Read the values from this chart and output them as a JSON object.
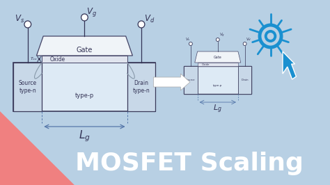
{
  "bg_color": "#b8d0e4",
  "title_text": "MOSFET Scaling",
  "title_color": "#ffffff",
  "title_fontsize": 26,
  "red_triangle_color": "#f08080",
  "mosfet_body_color": "#ddeaf5",
  "mosfet_body_edge": "#3a3a5a",
  "gate_color": "#f0f4f8",
  "gate_edge": "#444466",
  "oxide_color": "#e0e4ee",
  "oxide_edge": "#444466",
  "arrow_color": "#2080c0",
  "cursor_color": "#1a90d0",
  "label_color": "#333355",
  "dashed_color": "#5577aa",
  "Lg_label": "$L_g$",
  "Vs_label": "$V_s$",
  "Vg_label": "$V_g$",
  "Vd_label": "$V_d$",
  "source_label": "Source\ntype-n",
  "drain_label": "Drain\ntype-n",
  "typep_label": "type-p",
  "gate_label": "Gate",
  "oxide_label": "Oxide",
  "tox_label": "$T_{ox}$"
}
